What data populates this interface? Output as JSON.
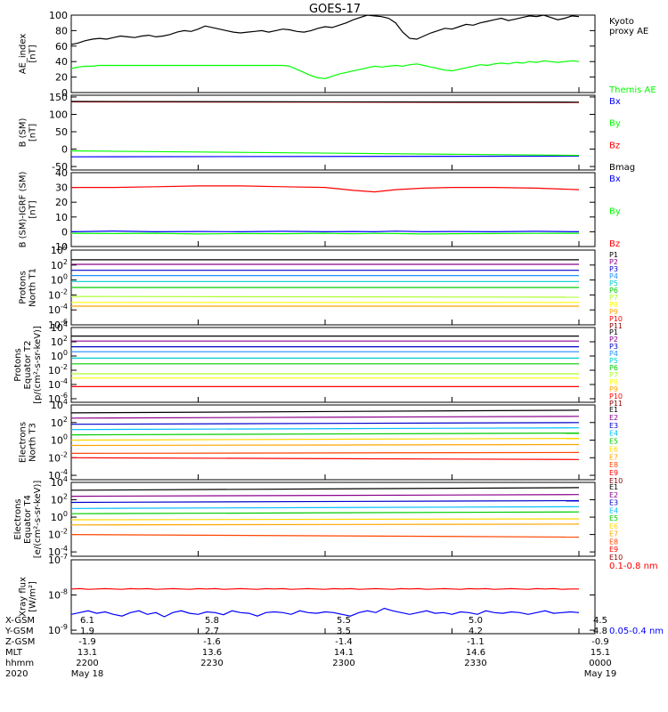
{
  "title": "GOES-17",
  "colors": {
    "axis": "#000000"
  },
  "footer": {
    "row_labels": [
      "X-GSM",
      "Y-GSM",
      "Z-GSM",
      "MLT",
      "hhmm",
      "2020"
    ],
    "columns": [
      [
        "6.1",
        "1.9",
        "-1.9",
        "13.1",
        "2200",
        "May 18"
      ],
      [
        "5.8",
        "2.7",
        "-1.6",
        "13.6",
        "2230",
        ""
      ],
      [
        "5.5",
        "3.5",
        "-1.4",
        "14.1",
        "2300",
        ""
      ],
      [
        "5.0",
        "4.2",
        "-1.1",
        "14.6",
        "2330",
        ""
      ],
      [
        "4.5",
        "4.8",
        "-0.9",
        "15.1",
        "0000",
        "May 19"
      ]
    ]
  },
  "chart_data": [
    {
      "type": "line",
      "ylabel": "AE_index\n[nT]",
      "yticks": [
        "100",
        "80",
        "60",
        "40",
        "20",
        "0"
      ],
      "ylim": [
        0,
        100
      ],
      "x": [
        0,
        5,
        10,
        15,
        20,
        25,
        30,
        35,
        40,
        45,
        50,
        55,
        60,
        65,
        70,
        75,
        80,
        85,
        90,
        95,
        100,
        105,
        110,
        115,
        120,
        125,
        130,
        135,
        140,
        145,
        150,
        155,
        160,
        165,
        170,
        175,
        180,
        185,
        190,
        195,
        200,
        205,
        210,
        215,
        220,
        225,
        230,
        235,
        240,
        245,
        250,
        255,
        260,
        265,
        270,
        275,
        280,
        285,
        290,
        295,
        300,
        305,
        310,
        315,
        320,
        325,
        330,
        335,
        340,
        345,
        350,
        355,
        360
      ],
      "series": [
        {
          "name": "Kyoto\nproxy AE",
          "color": "#000000",
          "values": [
            62,
            64,
            67,
            69,
            70,
            69,
            71,
            73,
            72,
            71,
            73,
            74,
            72,
            73,
            75,
            78,
            80,
            79,
            82,
            86,
            84,
            82,
            80,
            78,
            77,
            78,
            79,
            80,
            78,
            80,
            82,
            81,
            79,
            78,
            80,
            83,
            85,
            84,
            87,
            90,
            94,
            97,
            100,
            99,
            98,
            96,
            90,
            78,
            70,
            69,
            73,
            77,
            80,
            83,
            82,
            85,
            88,
            87,
            90,
            92,
            94,
            96,
            93,
            95,
            97,
            99,
            98,
            100,
            97,
            94,
            96,
            99,
            98
          ]
        },
        {
          "name": "Themis AE",
          "color": "#00ff00",
          "values": [
            31,
            33,
            34,
            34,
            35,
            35,
            35,
            35,
            35,
            35,
            35,
            35,
            35,
            35,
            35,
            35,
            35,
            35,
            35,
            35,
            35,
            35,
            35,
            35,
            35,
            35,
            35,
            35,
            35,
            35,
            35,
            34,
            30,
            26,
            22,
            19,
            18,
            21,
            24,
            26,
            28,
            30,
            32,
            34,
            33,
            34,
            35,
            34,
            36,
            37,
            35,
            33,
            31,
            29,
            28,
            30,
            32,
            34,
            36,
            35,
            37,
            38,
            37,
            39,
            38,
            40,
            39,
            41,
            40,
            39,
            40,
            41,
            40
          ]
        }
      ]
    },
    {
      "type": "line",
      "ylabel": "B (SM)\n[nT]",
      "yticks": [
        "150",
        "100",
        "50",
        "0",
        "-50"
      ],
      "ylim": [
        -60,
        155
      ],
      "x": [
        0,
        360
      ],
      "series": [
        {
          "name": "Bx",
          "color": "#0000ff",
          "values": [
            -22,
            -20
          ]
        },
        {
          "name": "By",
          "color": "#00ff00",
          "values": [
            -5,
            -18
          ]
        },
        {
          "name": "Bz",
          "color": "#ff0000",
          "values": [
            136,
            134
          ]
        },
        {
          "name": "Bmag",
          "color": "#000000",
          "values": [
            137,
            135
          ]
        }
      ]
    },
    {
      "type": "line",
      "ylabel": "B (SM)-IGRF (SM)\n[nT]",
      "yticks": [
        "40",
        "30",
        "20",
        "10",
        "0",
        "-10"
      ],
      "ylim": [
        -10,
        40
      ],
      "x": [
        0,
        30,
        60,
        90,
        120,
        150,
        180,
        200,
        215,
        230,
        250,
        270,
        300,
        330,
        360
      ],
      "series": [
        {
          "name": "Bx",
          "color": "#0000ff",
          "values": [
            0,
            0.5,
            0,
            0.2,
            0,
            0.3,
            0,
            0.2,
            0,
            0.4,
            0,
            0.2,
            0,
            0.3,
            0
          ]
        },
        {
          "name": "By",
          "color": "#00ff00",
          "values": [
            -1,
            -1.2,
            -1,
            -1.5,
            -1.2,
            -1.3,
            -1,
            -1.4,
            -1.1,
            -1.2,
            -1.5,
            -1.3,
            -1.2,
            -1.1,
            -1
          ]
        },
        {
          "name": "Bz",
          "color": "#ff0000",
          "values": [
            30,
            30,
            30.5,
            31,
            31,
            30.5,
            30,
            28,
            27,
            28.5,
            29.5,
            30,
            30,
            29.5,
            28.5
          ]
        }
      ]
    },
    {
      "type": "line",
      "ylabel": "Protons\nNorth T1",
      "log": true,
      "yticks": [
        "10^4",
        "10^2",
        "10^0",
        "10^-2",
        "10^-4",
        "10^-6"
      ],
      "ylim": [
        -6,
        4
      ],
      "series": [
        {
          "name": "P1",
          "color": "#000000",
          "values": [
            2.7,
            2.7
          ]
        },
        {
          "name": "P2",
          "color": "#8b008b",
          "values": [
            2.1,
            2.1
          ]
        },
        {
          "name": "P3",
          "color": "#0000cd",
          "values": [
            1.3,
            1.3
          ]
        },
        {
          "name": "P4",
          "color": "#1e90ff",
          "values": [
            0.6,
            0.6
          ]
        },
        {
          "name": "P5",
          "color": "#00ced1",
          "values": [
            -0.2,
            -0.2
          ]
        },
        {
          "name": "P6",
          "color": "#00cc00",
          "values": [
            -1.0,
            -1.0
          ]
        },
        {
          "name": "P7",
          "color": "#adff2f",
          "values": [
            -2.2,
            -2.3
          ]
        },
        {
          "name": "P8",
          "color": "#ffff00",
          "values": [
            -3.0,
            -3.0
          ]
        },
        {
          "name": "P9",
          "color": "#ffa500",
          "values": [
            -3.5,
            -3.5
          ]
        },
        {
          "name": "P10",
          "color": "#ff0000",
          "values": []
        },
        {
          "name": "P11",
          "color": "#8b0000",
          "values": []
        }
      ]
    },
    {
      "type": "line",
      "ylabel": "Protons\nEquator T2\n[p/(cm²-s-sr-keV)]",
      "log": true,
      "yticks": [
        "10^4",
        "10^2",
        "10^0",
        "10^-2",
        "10^-4",
        "10^-6"
      ],
      "ylim": [
        -6.5,
        4
      ],
      "series": [
        {
          "name": "P1",
          "color": "#000000",
          "values": [
            2.8,
            2.8
          ]
        },
        {
          "name": "P2",
          "color": "#8b008b",
          "values": [
            2.1,
            2.1
          ]
        },
        {
          "name": "P3",
          "color": "#0000cd",
          "values": [
            1.3,
            1.3
          ]
        },
        {
          "name": "P4",
          "color": "#1e90ff",
          "values": [
            0.6,
            0.6
          ]
        },
        {
          "name": "P5",
          "color": "#00ced1",
          "values": [
            -0.3,
            -0.3
          ]
        },
        {
          "name": "P6",
          "color": "#00cc00",
          "values": [
            -1.1,
            -1.1
          ]
        },
        {
          "name": "P7",
          "color": "#adff2f",
          "values": [
            -2.5,
            -2.5
          ]
        },
        {
          "name": "P8",
          "color": "#ffff00",
          "values": [
            -3.1,
            -3.1
          ]
        },
        {
          "name": "P9",
          "color": "#ffa500",
          "values": []
        },
        {
          "name": "P10",
          "color": "#ff0000",
          "values": [
            -4.3,
            -4.3
          ]
        },
        {
          "name": "P11",
          "color": "#8b0000",
          "values": []
        }
      ]
    },
    {
      "type": "line",
      "ylabel": "Electrons\nNorth T3",
      "log": true,
      "yticks": [
        "10^4",
        "10^2",
        "10^0",
        "10^-2",
        "10^-4"
      ],
      "ylim": [
        -4.5,
        4
      ],
      "series": [
        {
          "name": "E1",
          "color": "#000000",
          "values": [
            3.1,
            3.4
          ]
        },
        {
          "name": "E2",
          "color": "#8b008b",
          "values": [
            2.5,
            2.7
          ]
        },
        {
          "name": "E3",
          "color": "#0000cd",
          "values": [
            1.8,
            2.0
          ]
        },
        {
          "name": "E4",
          "color": "#00bfff",
          "values": [
            1.2,
            1.4
          ]
        },
        {
          "name": "E5",
          "color": "#00cc00",
          "values": [
            0.6,
            0.8
          ]
        },
        {
          "name": "E6",
          "color": "#ffd700",
          "values": [
            0.0,
            0.2
          ]
        },
        {
          "name": "E7",
          "color": "#ffa500",
          "values": [
            -0.6,
            -0.5
          ]
        },
        {
          "name": "E8",
          "color": "#ff4500",
          "values": [
            -1.5,
            -1.4
          ]
        },
        {
          "name": "E9",
          "color": "#ff0000",
          "values": [
            -2.0,
            -2.2
          ]
        },
        {
          "name": "E10",
          "color": "#8b0000",
          "values": []
        }
      ]
    },
    {
      "type": "line",
      "ylabel": "Electrons\nEquator T4\n[e/(cm²-s-sr-keV)]",
      "log": true,
      "yticks": [
        "10^4",
        "10^2",
        "10^0",
        "10^-2",
        "10^-4"
      ],
      "ylim": [
        -4.5,
        4
      ],
      "series": [
        {
          "name": "E1",
          "color": "#000000",
          "values": [
            3.1,
            3.4
          ]
        },
        {
          "name": "E2",
          "color": "#8b008b",
          "values": [
            2.4,
            2.6
          ]
        },
        {
          "name": "E3",
          "color": "#0000cd",
          "values": [
            1.7,
            1.9
          ]
        },
        {
          "name": "E4",
          "color": "#00bfff",
          "values": [
            1.0,
            1.2
          ]
        },
        {
          "name": "E5",
          "color": "#00cc00",
          "values": [
            0.4,
            0.6
          ]
        },
        {
          "name": "E6",
          "color": "#ffd700",
          "values": [
            -0.3,
            -0.2
          ]
        },
        {
          "name": "E7",
          "color": "#ffa500",
          "values": [
            -0.9,
            -0.8
          ]
        },
        {
          "name": "E8",
          "color": "#ff4500",
          "values": [
            -2.0,
            -2.3
          ]
        },
        {
          "name": "E9",
          "color": "#ff0000",
          "values": []
        },
        {
          "name": "E10",
          "color": "#8b0000",
          "values": []
        }
      ]
    },
    {
      "type": "line",
      "ylabel": "Xray flux\n[W/m²]",
      "log": true,
      "yticks": [
        "10^-7",
        "10^-8",
        "10^-9"
      ],
      "ylim": [
        -9.1,
        -7
      ],
      "x": [
        0,
        6,
        12,
        18,
        24,
        30,
        36,
        42,
        48,
        54,
        60,
        66,
        72,
        78,
        84,
        90,
        96,
        102,
        108,
        114,
        120,
        126,
        132,
        138,
        144,
        150,
        156,
        162,
        168,
        174,
        180,
        186,
        192,
        198,
        204,
        210,
        216,
        222,
        228,
        234,
        240,
        246,
        252,
        258,
        264,
        270,
        276,
        282,
        288,
        294,
        300,
        306,
        312,
        318,
        324,
        330,
        336,
        342,
        348,
        354,
        360
      ],
      "series": [
        {
          "name": "0.1-0.8 nm",
          "color": "#ff0000",
          "values": [
            -7.83,
            -7.82,
            -7.84,
            -7.83,
            -7.82,
            -7.83,
            -7.84,
            -7.82,
            -7.83,
            -7.82,
            -7.84,
            -7.83,
            -7.82,
            -7.83,
            -7.84,
            -7.82,
            -7.83,
            -7.82,
            -7.84,
            -7.83,
            -7.82,
            -7.83,
            -7.84,
            -7.82,
            -7.83,
            -7.82,
            -7.84,
            -7.83,
            -7.82,
            -7.83,
            -7.84,
            -7.82,
            -7.83,
            -7.82,
            -7.84,
            -7.83,
            -7.82,
            -7.83,
            -7.84,
            -7.82,
            -7.83,
            -7.82,
            -7.84,
            -7.83,
            -7.82,
            -7.83,
            -7.84,
            -7.82,
            -7.83,
            -7.82,
            -7.84,
            -7.83,
            -7.82,
            -7.83,
            -7.84,
            -7.82,
            -7.83,
            -7.82,
            -7.84,
            -7.83,
            -7.83
          ]
        },
        {
          "name": "0.05-0.4 nm",
          "color": "#0000ff",
          "values": [
            -8.55,
            -8.5,
            -8.45,
            -8.52,
            -8.48,
            -8.55,
            -8.6,
            -8.5,
            -8.45,
            -8.55,
            -8.5,
            -8.62,
            -8.5,
            -8.45,
            -8.52,
            -8.55,
            -8.48,
            -8.5,
            -8.56,
            -8.45,
            -8.5,
            -8.52,
            -8.6,
            -8.5,
            -8.48,
            -8.5,
            -8.55,
            -8.45,
            -8.5,
            -8.52,
            -8.48,
            -8.5,
            -8.55,
            -8.6,
            -8.5,
            -8.45,
            -8.5,
            -8.38,
            -8.45,
            -8.5,
            -8.55,
            -8.5,
            -8.45,
            -8.52,
            -8.5,
            -8.55,
            -8.48,
            -8.5,
            -8.55,
            -8.45,
            -8.5,
            -8.52,
            -8.48,
            -8.5,
            -8.55,
            -8.5,
            -8.45,
            -8.52,
            -8.5,
            -8.48,
            -8.5
          ]
        }
      ]
    }
  ]
}
